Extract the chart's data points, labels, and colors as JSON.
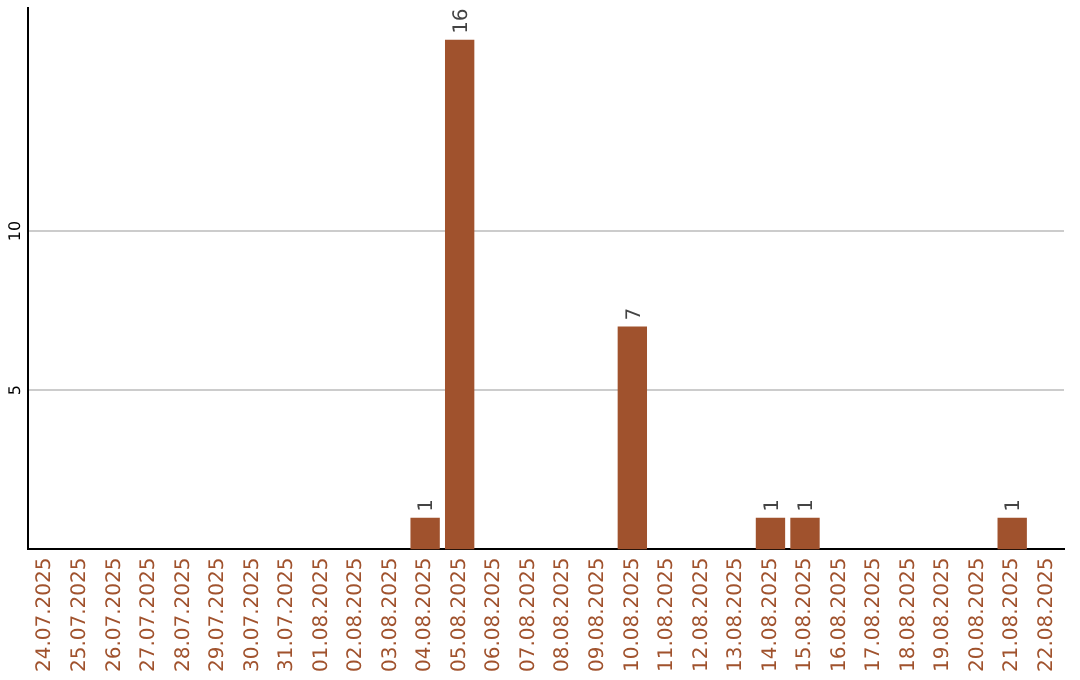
{
  "chart_data": {
    "type": "bar",
    "categories": [
      "24.07.2025",
      "25.07.2025",
      "26.07.2025",
      "27.07.2025",
      "28.07.2025",
      "29.07.2025",
      "30.07.2025",
      "31.07.2025",
      "01.08.2025",
      "02.08.2025",
      "03.08.2025",
      "04.08.2025",
      "05.08.2025",
      "06.08.2025",
      "07.08.2025",
      "08.08.2025",
      "09.08.2025",
      "10.08.2025",
      "11.08.2025",
      "12.08.2025",
      "13.08.2025",
      "14.08.2025",
      "15.08.2025",
      "16.08.2025",
      "17.08.2025",
      "18.08.2025",
      "19.08.2025",
      "20.08.2025",
      "21.08.2025",
      "22.08.2025"
    ],
    "values": [
      0,
      0,
      0,
      0,
      0,
      0,
      0,
      0,
      0,
      0,
      0,
      1,
      16,
      0,
      0,
      0,
      0,
      7,
      0,
      0,
      0,
      1,
      1,
      0,
      0,
      0,
      0,
      0,
      1,
      0
    ],
    "value_labels": [
      null,
      null,
      null,
      null,
      null,
      null,
      null,
      null,
      null,
      null,
      null,
      "1",
      "16",
      null,
      null,
      null,
      null,
      "7",
      null,
      null,
      null,
      "1",
      "1",
      null,
      null,
      null,
      null,
      null,
      "1",
      null
    ],
    "color": "#a0522d",
    "ylim": [
      0,
      17
    ],
    "yticks": [
      5,
      10
    ],
    "grid": "y",
    "legend": false
  }
}
